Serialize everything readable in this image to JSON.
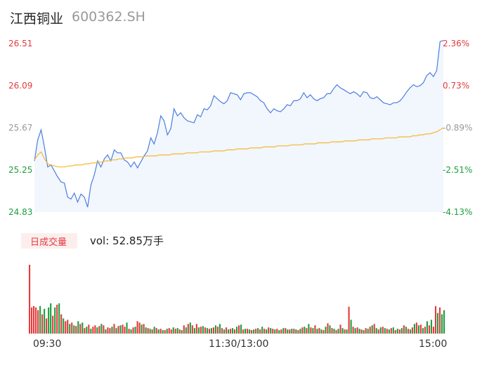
{
  "stock": {
    "name": "江西铜业",
    "code": "600362.SH"
  },
  "volume_tab": {
    "label": "日成交量",
    "vol_label": "vol: 52.85万手"
  },
  "colors": {
    "price_line": "#4b7fe0",
    "avg_line": "#f5b731",
    "up": "#e43b3b",
    "down": "#1e9e3f",
    "flat": "#999999",
    "fill": "#f2f6fd"
  },
  "chart_data": [
    {
      "type": "line",
      "title": "",
      "y_ticks_left": [
        "26.51",
        "26.09",
        "25.67",
        "25.25",
        "24.83"
      ],
      "y_ticks_right": [
        "2.36%",
        "0.73%",
        "-0.89%",
        "-2.51%",
        "-4.13%"
      ],
      "ylim": [
        24.83,
        26.51
      ],
      "x_ticks": [
        "09:30",
        "11:30/13:00",
        "15:00"
      ],
      "series": [
        {
          "name": "",
          "values": [
            25.34,
            25.55,
            25.65,
            25.48,
            25.28,
            25.3,
            25.24,
            25.18,
            25.13,
            25.12,
            24.98,
            24.96,
            25.02,
            24.93,
            25.01,
            24.98,
            24.88,
            25.1,
            25.2,
            25.34,
            25.28,
            25.36,
            25.4,
            25.34,
            25.45,
            25.42,
            25.42,
            25.35,
            25.33,
            25.28,
            25.33,
            25.27,
            25.33,
            25.39,
            25.44,
            25.57,
            25.51,
            25.62,
            25.79,
            25.74,
            25.6,
            25.66,
            25.86,
            25.79,
            25.82,
            25.77,
            25.74,
            25.73,
            25.72,
            25.8,
            25.78,
            25.86,
            25.85,
            25.89,
            25.99,
            25.96,
            25.93,
            25.91,
            25.94,
            26.02,
            26.01,
            26.0,
            25.95,
            26.01,
            26.02,
            26.02,
            26.0,
            25.98,
            25.94,
            25.92,
            25.86,
            25.82,
            25.86,
            25.84,
            25.83,
            25.86,
            25.9,
            25.89,
            25.94,
            25.94,
            25.96,
            26.02,
            25.97,
            26.0,
            25.96,
            25.94,
            25.96,
            25.97,
            26.01,
            26.01,
            26.06,
            26.1,
            26.07,
            26.05,
            26.03,
            26.01,
            26.03,
            26.01,
            25.98,
            26.03,
            26.02,
            25.97,
            25.96,
            25.98,
            25.95,
            25.92,
            25.91,
            25.9,
            25.92,
            25.92,
            25.94,
            25.98,
            26.03,
            26.07,
            26.1,
            26.08,
            26.09,
            26.12,
            26.19,
            26.22,
            26.18,
            26.24,
            26.53,
            26.54
          ]
        },
        {
          "name": "",
          "values": [
            25.35,
            25.4,
            25.43,
            25.36,
            25.31,
            25.3,
            25.29,
            25.28,
            25.28,
            25.28,
            25.29,
            25.29,
            25.3,
            25.3,
            25.3,
            25.31,
            25.31,
            25.32,
            25.32,
            25.33,
            25.33,
            25.34,
            25.34,
            25.35,
            25.35,
            25.36,
            25.36,
            25.37,
            25.37,
            25.37,
            25.38,
            25.38,
            25.38,
            25.39,
            25.39,
            25.39,
            25.39,
            25.4,
            25.4,
            25.4,
            25.4,
            25.41,
            25.41,
            25.41,
            25.41,
            25.42,
            25.42,
            25.42,
            25.42,
            25.43,
            25.43,
            25.43,
            25.43,
            25.44,
            25.44,
            25.44,
            25.44,
            25.45,
            25.45,
            25.45,
            25.46,
            25.46,
            25.46,
            25.46,
            25.47,
            25.47,
            25.47,
            25.47,
            25.48,
            25.48,
            25.48,
            25.48,
            25.49,
            25.49,
            25.49,
            25.49,
            25.5,
            25.5,
            25.5,
            25.5,
            25.51,
            25.51,
            25.51,
            25.51,
            25.52,
            25.52,
            25.52,
            25.52,
            25.53,
            25.53,
            25.53,
            25.53,
            25.54,
            25.54,
            25.54,
            25.54,
            25.55,
            25.55,
            25.55,
            25.55,
            25.56,
            25.56,
            25.56,
            25.56,
            25.57,
            25.57,
            25.57,
            25.57,
            25.58,
            25.58,
            25.58,
            25.58,
            25.59,
            25.59,
            25.6,
            25.6,
            25.61,
            25.61,
            25.62,
            25.63,
            25.65,
            25.67
          ]
        }
      ]
    },
    {
      "type": "bar",
      "title": "",
      "values": [
        100,
        38,
        40,
        38,
        34,
        40,
        28,
        36,
        22,
        38,
        44,
        26,
        38,
        42,
        44,
        28,
        22,
        18,
        20,
        14,
        16,
        12,
        11,
        18,
        14,
        16,
        8,
        10,
        13,
        7,
        10,
        12,
        9,
        11,
        14,
        12,
        6,
        9,
        8,
        10,
        14,
        8,
        11,
        12,
        13,
        10,
        16,
        7,
        6,
        9,
        10,
        18,
        16,
        13,
        14,
        9,
        8,
        7,
        6,
        10,
        8,
        6,
        7,
        5,
        5,
        7,
        8,
        6,
        9,
        7,
        8,
        6,
        5,
        12,
        9,
        14,
        16,
        12,
        8,
        14,
        9,
        10,
        11,
        9,
        8,
        7,
        8,
        9,
        12,
        10,
        14,
        8,
        6,
        9,
        6,
        7,
        8,
        6,
        10,
        12,
        13,
        6,
        7,
        7,
        6,
        5,
        6,
        7,
        8,
        6,
        10,
        7,
        6,
        9,
        8,
        7,
        6,
        7,
        5,
        6,
        8,
        8,
        6,
        6,
        7,
        7,
        6,
        5,
        7,
        9,
        10,
        8,
        14,
        9,
        8,
        12,
        7,
        8,
        6,
        5,
        10,
        15,
        12,
        8,
        7,
        5,
        7,
        13,
        8,
        6,
        6,
        39,
        20,
        10,
        8,
        9,
        7,
        6,
        5,
        8,
        7,
        10,
        12,
        14,
        8,
        6,
        9,
        10,
        8,
        7,
        6,
        8,
        9,
        5,
        7,
        6,
        8,
        12,
        10,
        7,
        6,
        9,
        14,
        16,
        12,
        13,
        8,
        10,
        18,
        12,
        20,
        10,
        40,
        30,
        38,
        28,
        34
      ],
      "directions": [
        "u",
        "u",
        "u",
        "u",
        "u",
        "d",
        "u",
        "d",
        "u",
        "d",
        "d",
        "u",
        "d",
        "u",
        "d",
        "u",
        "d",
        "u",
        "u",
        "d",
        "u",
        "d",
        "u",
        "d",
        "u",
        "d",
        "u",
        "d",
        "u",
        "d",
        "u",
        "u",
        "d",
        "u",
        "d",
        "u",
        "d",
        "u",
        "u",
        "d",
        "u",
        "d",
        "u",
        "d",
        "u",
        "u",
        "d",
        "u",
        "d",
        "u",
        "d",
        "u",
        "u",
        "d",
        "u",
        "d",
        "u",
        "d",
        "u",
        "d",
        "u",
        "d",
        "u",
        "d",
        "u",
        "d",
        "u",
        "u",
        "d",
        "u",
        "d",
        "u",
        "d",
        "u",
        "d",
        "u",
        "d",
        "u",
        "d",
        "u",
        "d",
        "u",
        "d",
        "u",
        "d",
        "u",
        "d",
        "u",
        "d",
        "u",
        "d",
        "u",
        "d",
        "u",
        "d",
        "u",
        "d",
        "u",
        "d",
        "u",
        "d",
        "u",
        "d",
        "u",
        "d",
        "u",
        "d",
        "u",
        "d",
        "u",
        "d",
        "u",
        "d",
        "u",
        "d",
        "u",
        "d",
        "u",
        "d",
        "u",
        "d",
        "u",
        "d",
        "u",
        "d",
        "u",
        "d",
        "u",
        "d",
        "u",
        "d",
        "u",
        "d",
        "u",
        "d",
        "u",
        "d",
        "u",
        "d",
        "u",
        "d",
        "u",
        "d",
        "u",
        "d",
        "u",
        "d",
        "u",
        "d",
        "u",
        "d",
        "u",
        "d",
        "u",
        "d",
        "u",
        "d",
        "u",
        "d",
        "u",
        "d",
        "u",
        "d",
        "u",
        "d",
        "u",
        "d",
        "u",
        "d",
        "u",
        "d",
        "u",
        "d",
        "u",
        "d",
        "u",
        "d",
        "u",
        "d",
        "u",
        "d",
        "u",
        "d",
        "u",
        "d",
        "u",
        "d",
        "u",
        "d",
        "u",
        "d",
        "u",
        "u",
        "d",
        "u",
        "f"
      ]
    }
  ]
}
